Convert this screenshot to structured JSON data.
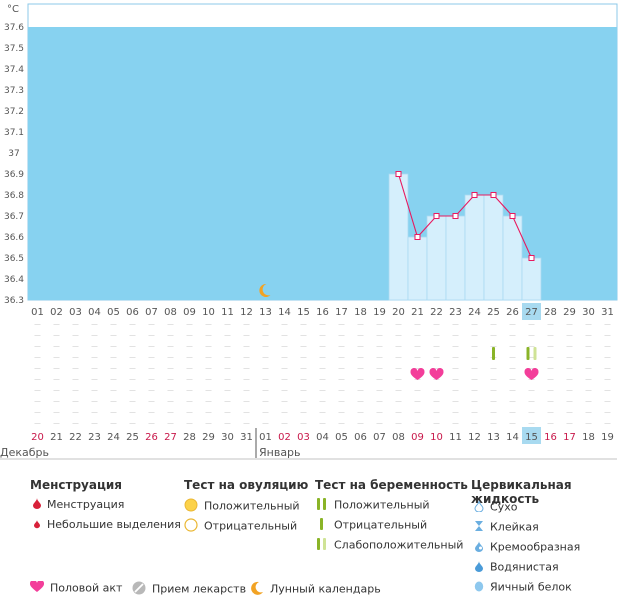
{
  "chart_data": {
    "type": "line",
    "yunit": "°C",
    "ylim": [
      36.3,
      37.6
    ],
    "yticks": [
      "36.3",
      "36.4",
      "36.5",
      "36.6",
      "36.7",
      "36.8",
      "36.9",
      "37",
      "37.1",
      "37.2",
      "37.3",
      "37.4",
      "37.5",
      "37.6"
    ],
    "cycle_days": [
      "01",
      "02",
      "03",
      "04",
      "05",
      "06",
      "07",
      "08",
      "09",
      "10",
      "11",
      "12",
      "13",
      "14",
      "15",
      "16",
      "17",
      "18",
      "19",
      "20",
      "21",
      "22",
      "23",
      "24",
      "25",
      "26",
      "27",
      "28",
      "29",
      "30",
      "31"
    ],
    "current_day": "27",
    "calendar_dates": [
      {
        "label": "20",
        "weekend": true
      },
      {
        "label": "21",
        "weekend": false
      },
      {
        "label": "22",
        "weekend": false
      },
      {
        "label": "23",
        "weekend": false
      },
      {
        "label": "24",
        "weekend": false
      },
      {
        "label": "25",
        "weekend": false
      },
      {
        "label": "26",
        "weekend": true
      },
      {
        "label": "27",
        "weekend": true
      },
      {
        "label": "28",
        "weekend": false
      },
      {
        "label": "29",
        "weekend": false
      },
      {
        "label": "30",
        "weekend": false
      },
      {
        "label": "31",
        "weekend": false
      },
      {
        "label": "01",
        "weekend": false
      },
      {
        "label": "02",
        "weekend": true
      },
      {
        "label": "03",
        "weekend": true
      },
      {
        "label": "04",
        "weekend": false
      },
      {
        "label": "05",
        "weekend": false
      },
      {
        "label": "06",
        "weekend": false
      },
      {
        "label": "07",
        "weekend": false
      },
      {
        "label": "08",
        "weekend": false
      },
      {
        "label": "09",
        "weekend": true
      },
      {
        "label": "10",
        "weekend": true
      },
      {
        "label": "11",
        "weekend": false
      },
      {
        "label": "12",
        "weekend": false
      },
      {
        "label": "13",
        "weekend": false
      },
      {
        "label": "14",
        "weekend": false
      },
      {
        "label": "15",
        "weekend": false
      },
      {
        "label": "16",
        "weekend": true
      },
      {
        "label": "17",
        "weekend": true
      },
      {
        "label": "18",
        "weekend": false
      },
      {
        "label": "19",
        "weekend": false
      }
    ],
    "months": [
      {
        "label": "Декабрь",
        "start_day": 1
      },
      {
        "label": "Январь",
        "start_day": 13
      }
    ],
    "temperature": [
      {
        "day": 20,
        "value": 36.9
      },
      {
        "day": 21,
        "value": 36.6
      },
      {
        "day": 22,
        "value": 36.7
      },
      {
        "day": 23,
        "value": 36.7
      },
      {
        "day": 24,
        "value": 36.8
      },
      {
        "day": 25,
        "value": 36.8
      },
      {
        "day": 26,
        "value": 36.7
      },
      {
        "day": 27,
        "value": 36.5
      }
    ],
    "moon_day": 13,
    "intercourse_days": [
      21,
      22,
      27
    ],
    "pregnancy_tests": [
      {
        "day": 25,
        "result": "negative"
      },
      {
        "day": 27,
        "result": "positive"
      }
    ],
    "colors": {
      "plot_bg": "#87d2f0",
      "bar_fill": "#d5effc",
      "bar_edge": "#a9daf2",
      "line": "#e8195f",
      "highlight_day_bg": "#a8daf0",
      "weekend_text": "#c8184a",
      "heart": "#f33e9a",
      "test_green": "#8ab428",
      "test_light": "#cfe396",
      "moon": "#f2a324"
    }
  },
  "legend": {
    "menstruation": {
      "title": "Менструация",
      "items": [
        "Менструация",
        "Небольшие выделения"
      ]
    },
    "ovulation_test": {
      "title": "Тест на овуляцию",
      "items": [
        "Положительный",
        "Отрицательный"
      ]
    },
    "pregnancy_test": {
      "title": "Тест на беременность",
      "items": [
        "Положительный",
        "Отрицательный",
        "Слабоположительный"
      ]
    },
    "cervical_fluid": {
      "title": "Цервикальная жидкость",
      "items": [
        "Сухо",
        "Клейкая",
        "Кремообразная",
        "Водянистая",
        "Яичный белок"
      ]
    },
    "bottom": {
      "intercourse": "Половой акт",
      "medication": "Прием лекарств",
      "moon_calendar": "Лунный календарь"
    }
  }
}
